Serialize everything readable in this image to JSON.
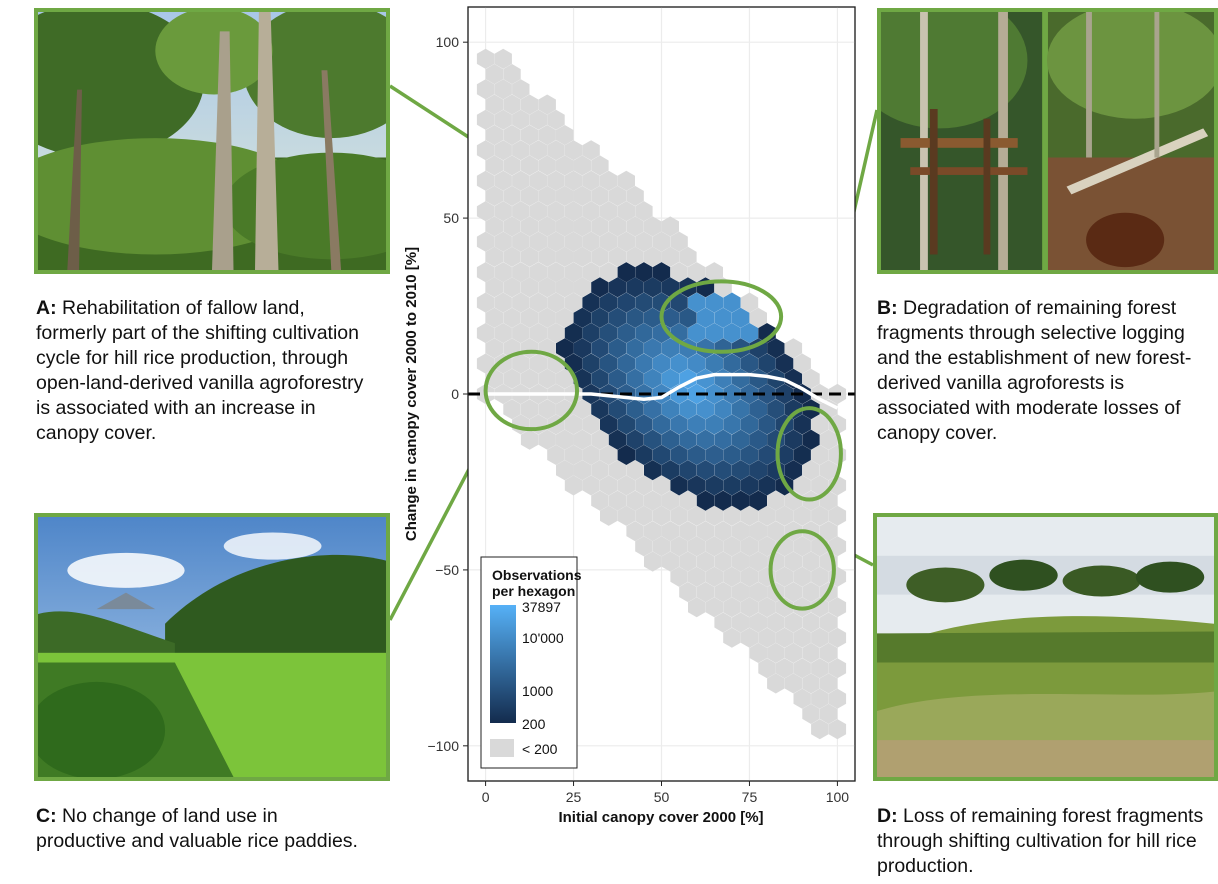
{
  "panels": {
    "a": {
      "letter": "A:",
      "text": "Rehabilitation of fallow land, formerly part of the shifting cultivation cycle for hill rice production, through open-land-derived vanilla agroforestry is associated with an increase in canopy cover."
    },
    "b": {
      "letter": "B:",
      "text": "Degradation of remaining forest fragments through selective logging and the establishment of new forest-derived vanilla agroforests is associated with moderate losses of canopy cover."
    },
    "c": {
      "letter": "C:",
      "text": "No change of land use in productive and valuable rice paddies."
    },
    "d": {
      "letter": "D:",
      "text": "Loss of remaining forest fragments through shifting cultivation for hill rice production."
    }
  },
  "colors": {
    "frame": "#6fa844",
    "hex_low": "#132b4d",
    "hex_high": "#56b1f7",
    "hex_grey": "#d9d9d9",
    "smooth_line": "#ffffff",
    "zero_line": "#000000"
  },
  "chart_data": {
    "type": "heatmap",
    "subtype": "hexbin",
    "xlabel": "Initial canopy cover 2000 [%]",
    "ylabel": "Change in canopy cover 2000 to 2010 [%]",
    "xlim": [
      -5,
      105
    ],
    "ylim": [
      -110,
      110
    ],
    "xticks": [
      0,
      25,
      50,
      75,
      100
    ],
    "xtick_labels": [
      "0",
      "25",
      "50",
      "75",
      "100"
    ],
    "yticks": [
      -100,
      -50,
      0,
      50,
      100
    ],
    "ytick_labels": [
      "−100",
      "−50",
      "0",
      "50",
      "100"
    ],
    "grid": true,
    "legend": {
      "title_line1": "Observations",
      "title_line2": "per hexagon",
      "labels": [
        "37897",
        "10'000",
        "1000",
        "200"
      ],
      "values": [
        37897,
        10000,
        1000,
        200
      ],
      "grey_label": "< 200",
      "position": "bottom-left"
    },
    "smooth_curve": {
      "x": [
        0,
        10,
        20,
        30,
        40,
        45,
        50,
        55,
        60,
        65,
        70,
        75,
        80,
        85,
        90,
        95,
        100
      ],
      "y": [
        0,
        0,
        0,
        0,
        -1,
        -1.5,
        -1,
        2,
        4.5,
        5.5,
        5.5,
        5.5,
        5,
        4,
        1.5,
        -1.5,
        -4
      ]
    },
    "reference_line": {
      "y": 0,
      "style": "dashed"
    },
    "highlight_ellipses": [
      {
        "panel": "A",
        "cx": 67,
        "cy": 22,
        "rx": 17,
        "ry": 10
      },
      {
        "panel": "C",
        "cx": 13,
        "cy": 1,
        "rx": 13,
        "ry": 11
      },
      {
        "panel": "B",
        "cx": 92,
        "cy": -17,
        "rx": 9,
        "ry": 13
      },
      {
        "panel": "D",
        "cx": 90,
        "cy": -50,
        "rx": 9,
        "ry": 11
      }
    ]
  }
}
